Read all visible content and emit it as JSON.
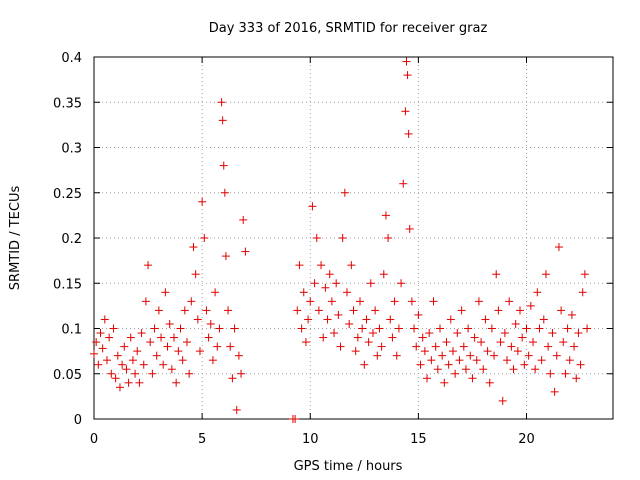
{
  "chart_data": {
    "type": "scatter",
    "title": "Day 333 of 2016, SRMTID for receiver graz",
    "xlabel": "GPS time / hours",
    "ylabel": "SRMTID / TECUs",
    "xlim": [
      0,
      24
    ],
    "ylim": [
      0,
      0.4
    ],
    "x_ticks": [
      0,
      5,
      10,
      15,
      20
    ],
    "x_tick_labels": [
      "0",
      "5",
      "10",
      "15",
      "20"
    ],
    "y_ticks": [
      0,
      0.05,
      0.1,
      0.15,
      0.2,
      0.25,
      0.3,
      0.35,
      0.4
    ],
    "y_tick_labels": [
      "0",
      "0.05",
      "0.1",
      "0.15",
      "0.2",
      "0.25",
      "0.3",
      "0.35",
      "0.4"
    ],
    "grid": true,
    "marker": "plus",
    "color": "#e00000",
    "series": [
      {
        "name": "SRMTID",
        "points": [
          [
            0.0,
            0.072
          ],
          [
            0.1,
            0.085
          ],
          [
            0.2,
            0.06
          ],
          [
            0.3,
            0.095
          ],
          [
            0.4,
            0.078
          ],
          [
            0.5,
            0.11
          ],
          [
            0.6,
            0.065
          ],
          [
            0.7,
            0.09
          ],
          [
            0.8,
            0.05
          ],
          [
            0.9,
            0.1
          ],
          [
            1.0,
            0.045
          ],
          [
            1.1,
            0.07
          ],
          [
            1.2,
            0.035
          ],
          [
            1.3,
            0.06
          ],
          [
            1.4,
            0.08
          ],
          [
            1.5,
            0.055
          ],
          [
            1.6,
            0.04
          ],
          [
            1.7,
            0.09
          ],
          [
            1.8,
            0.065
          ],
          [
            1.9,
            0.05
          ],
          [
            2.0,
            0.075
          ],
          [
            2.1,
            0.04
          ],
          [
            2.2,
            0.095
          ],
          [
            2.3,
            0.06
          ],
          [
            2.4,
            0.13
          ],
          [
            2.5,
            0.17
          ],
          [
            2.6,
            0.085
          ],
          [
            2.7,
            0.05
          ],
          [
            2.8,
            0.1
          ],
          [
            2.9,
            0.07
          ],
          [
            3.0,
            0.12
          ],
          [
            3.1,
            0.09
          ],
          [
            3.2,
            0.06
          ],
          [
            3.3,
            0.14
          ],
          [
            3.4,
            0.08
          ],
          [
            3.5,
            0.105
          ],
          [
            3.6,
            0.055
          ],
          [
            3.7,
            0.09
          ],
          [
            3.8,
            0.04
          ],
          [
            3.9,
            0.075
          ],
          [
            4.0,
            0.1
          ],
          [
            4.1,
            0.065
          ],
          [
            4.2,
            0.12
          ],
          [
            4.3,
            0.085
          ],
          [
            4.4,
            0.05
          ],
          [
            4.5,
            0.13
          ],
          [
            4.6,
            0.19
          ],
          [
            4.7,
            0.16
          ],
          [
            4.8,
            0.11
          ],
          [
            4.9,
            0.075
          ],
          [
            5.0,
            0.24
          ],
          [
            5.1,
            0.2
          ],
          [
            5.2,
            0.12
          ],
          [
            5.3,
            0.09
          ],
          [
            5.4,
            0.105
          ],
          [
            5.5,
            0.065
          ],
          [
            5.6,
            0.14
          ],
          [
            5.7,
            0.08
          ],
          [
            5.8,
            0.1
          ],
          [
            5.9,
            0.35
          ],
          [
            5.95,
            0.33
          ],
          [
            6.0,
            0.28
          ],
          [
            6.05,
            0.25
          ],
          [
            6.1,
            0.18
          ],
          [
            6.2,
            0.12
          ],
          [
            6.3,
            0.08
          ],
          [
            6.4,
            0.045
          ],
          [
            6.5,
            0.1
          ],
          [
            6.6,
            0.01
          ],
          [
            6.7,
            0.07
          ],
          [
            6.8,
            0.05
          ],
          [
            6.9,
            0.22
          ],
          [
            7.0,
            0.185
          ],
          [
            9.2,
            0.0
          ],
          [
            9.3,
            0.0
          ],
          [
            9.4,
            0.12
          ],
          [
            9.5,
            0.17
          ],
          [
            9.6,
            0.1
          ],
          [
            9.7,
            0.14
          ],
          [
            9.8,
            0.085
          ],
          [
            9.9,
            0.11
          ],
          [
            10.0,
            0.13
          ],
          [
            10.1,
            0.235
          ],
          [
            10.2,
            0.15
          ],
          [
            10.3,
            0.2
          ],
          [
            10.4,
            0.12
          ],
          [
            10.5,
            0.17
          ],
          [
            10.6,
            0.09
          ],
          [
            10.7,
            0.145
          ],
          [
            10.8,
            0.11
          ],
          [
            10.9,
            0.16
          ],
          [
            11.0,
            0.13
          ],
          [
            11.1,
            0.095
          ],
          [
            11.2,
            0.15
          ],
          [
            11.3,
            0.115
          ],
          [
            11.4,
            0.08
          ],
          [
            11.5,
            0.2
          ],
          [
            11.6,
            0.25
          ],
          [
            11.7,
            0.14
          ],
          [
            11.8,
            0.105
          ],
          [
            11.9,
            0.17
          ],
          [
            12.0,
            0.12
          ],
          [
            12.1,
            0.075
          ],
          [
            12.2,
            0.09
          ],
          [
            12.3,
            0.13
          ],
          [
            12.4,
            0.1
          ],
          [
            12.5,
            0.06
          ],
          [
            12.6,
            0.11
          ],
          [
            12.7,
            0.085
          ],
          [
            12.8,
            0.15
          ],
          [
            12.9,
            0.095
          ],
          [
            13.0,
            0.12
          ],
          [
            13.1,
            0.07
          ],
          [
            13.2,
            0.1
          ],
          [
            13.3,
            0.08
          ],
          [
            13.4,
            0.16
          ],
          [
            13.5,
            0.225
          ],
          [
            13.6,
            0.2
          ],
          [
            13.7,
            0.11
          ],
          [
            13.8,
            0.09
          ],
          [
            13.9,
            0.13
          ],
          [
            14.0,
            0.07
          ],
          [
            14.1,
            0.1
          ],
          [
            14.2,
            0.15
          ],
          [
            14.3,
            0.26
          ],
          [
            14.4,
            0.34
          ],
          [
            14.45,
            0.395
          ],
          [
            14.5,
            0.38
          ],
          [
            14.55,
            0.315
          ],
          [
            14.6,
            0.21
          ],
          [
            14.7,
            0.13
          ],
          [
            14.8,
            0.1
          ],
          [
            14.9,
            0.08
          ],
          [
            15.0,
            0.115
          ],
          [
            15.1,
            0.06
          ],
          [
            15.2,
            0.09
          ],
          [
            15.3,
            0.075
          ],
          [
            15.4,
            0.045
          ],
          [
            15.5,
            0.095
          ],
          [
            15.6,
            0.065
          ],
          [
            15.7,
            0.13
          ],
          [
            15.8,
            0.08
          ],
          [
            15.9,
            0.055
          ],
          [
            16.0,
            0.1
          ],
          [
            16.1,
            0.07
          ],
          [
            16.2,
            0.04
          ],
          [
            16.3,
            0.085
          ],
          [
            16.4,
            0.06
          ],
          [
            16.5,
            0.11
          ],
          [
            16.6,
            0.075
          ],
          [
            16.7,
            0.05
          ],
          [
            16.8,
            0.095
          ],
          [
            16.9,
            0.065
          ],
          [
            17.0,
            0.12
          ],
          [
            17.1,
            0.08
          ],
          [
            17.2,
            0.055
          ],
          [
            17.3,
            0.1
          ],
          [
            17.4,
            0.07
          ],
          [
            17.5,
            0.045
          ],
          [
            17.6,
            0.09
          ],
          [
            17.7,
            0.065
          ],
          [
            17.8,
            0.13
          ],
          [
            17.9,
            0.085
          ],
          [
            18.0,
            0.055
          ],
          [
            18.1,
            0.11
          ],
          [
            18.2,
            0.075
          ],
          [
            18.3,
            0.04
          ],
          [
            18.4,
            0.1
          ],
          [
            18.5,
            0.07
          ],
          [
            18.6,
            0.16
          ],
          [
            18.7,
            0.12
          ],
          [
            18.8,
            0.085
          ],
          [
            18.9,
            0.02
          ],
          [
            19.0,
            0.095
          ],
          [
            19.1,
            0.065
          ],
          [
            19.2,
            0.13
          ],
          [
            19.3,
            0.08
          ],
          [
            19.4,
            0.055
          ],
          [
            19.5,
            0.105
          ],
          [
            19.6,
            0.075
          ],
          [
            19.7,
            0.12
          ],
          [
            19.8,
            0.09
          ],
          [
            19.9,
            0.06
          ],
          [
            20.0,
            0.1
          ],
          [
            20.1,
            0.07
          ],
          [
            20.2,
            0.125
          ],
          [
            20.3,
            0.085
          ],
          [
            20.4,
            0.055
          ],
          [
            20.5,
            0.14
          ],
          [
            20.6,
            0.1
          ],
          [
            20.7,
            0.065
          ],
          [
            20.8,
            0.11
          ],
          [
            20.9,
            0.16
          ],
          [
            21.0,
            0.08
          ],
          [
            21.1,
            0.05
          ],
          [
            21.2,
            0.095
          ],
          [
            21.3,
            0.03
          ],
          [
            21.4,
            0.07
          ],
          [
            21.5,
            0.19
          ],
          [
            21.6,
            0.12
          ],
          [
            21.7,
            0.085
          ],
          [
            21.8,
            0.05
          ],
          [
            21.9,
            0.1
          ],
          [
            22.0,
            0.065
          ],
          [
            22.1,
            0.115
          ],
          [
            22.2,
            0.08
          ],
          [
            22.3,
            0.045
          ],
          [
            22.4,
            0.095
          ],
          [
            22.5,
            0.06
          ],
          [
            22.6,
            0.14
          ],
          [
            22.7,
            0.16
          ],
          [
            22.8,
            0.1
          ]
        ]
      }
    ]
  }
}
